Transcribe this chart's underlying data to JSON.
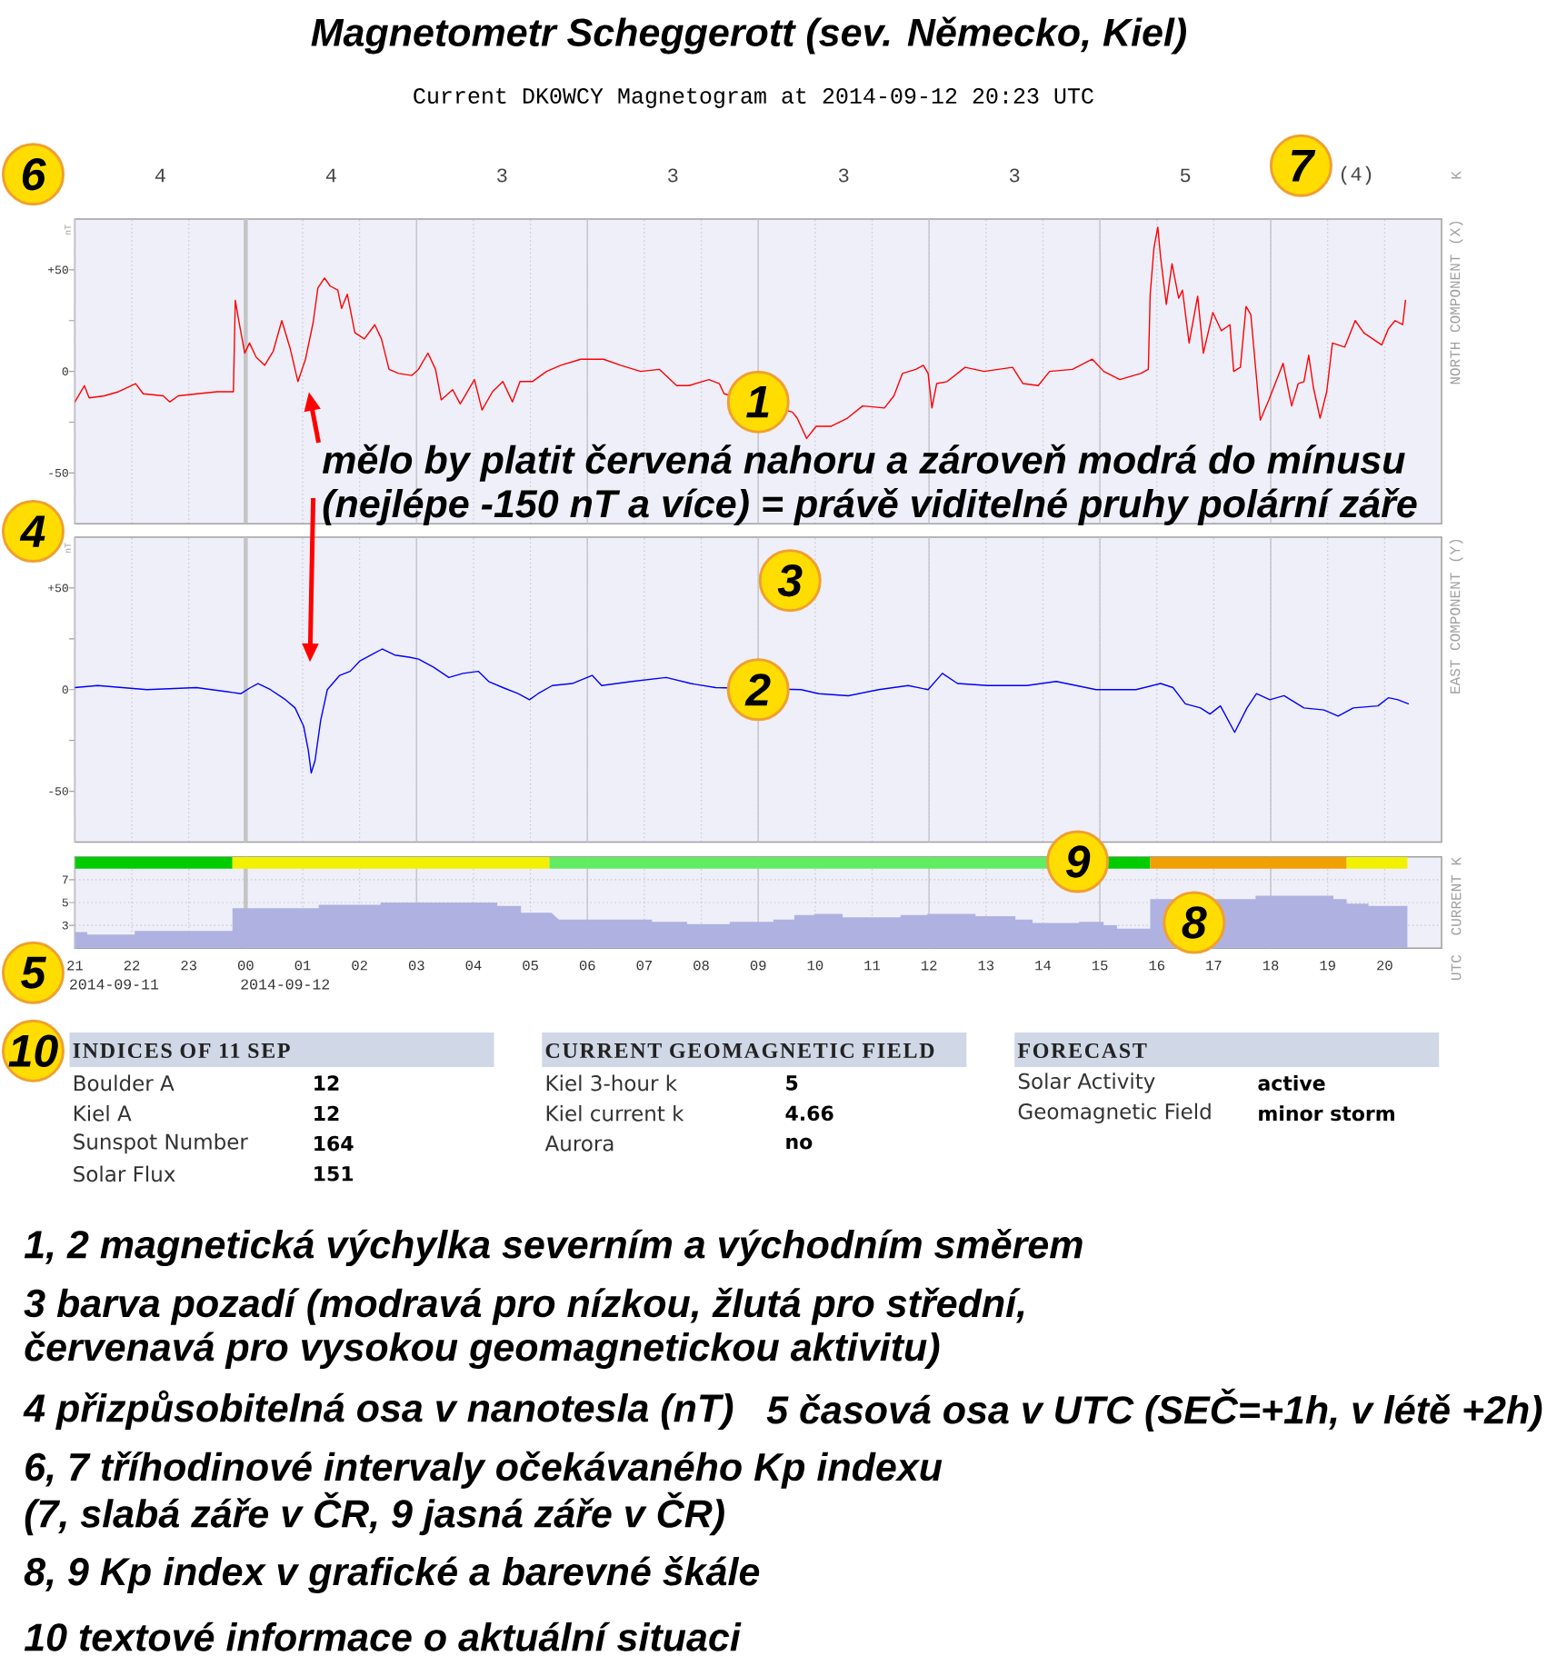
{
  "chart_data": [
    {
      "type": "line",
      "title": "Magnetometr Scheggerott (sev. Německo, Kiel)",
      "subtitle": "Current DK0WCY Magnetogram at 2014-09-12 20:23 UTC",
      "ylabel": "nT",
      "y2label": "NORTH COMPONENT (X)",
      "color": "#ff0000",
      "x": [
        "2014-09-11T21:00",
        "2014-09-11T21:10",
        "2014-09-11T21:15",
        "2014-09-11T21:31",
        "2014-09-11T21:46",
        "2014-09-11T22:04",
        "2014-09-11T22:12",
        "2014-09-11T22:33",
        "2014-09-11T22:40",
        "2014-09-11T22:49",
        "2014-09-11T23:09",
        "2014-09-11T23:30",
        "2014-09-11T23:47",
        "2014-09-11T23:49",
        "2014-09-11T23:53",
        "2014-09-11T23:59",
        "2014-09-12T00:04",
        "2014-09-12T00:11",
        "2014-09-12T00:20",
        "2014-09-12T00:29",
        "2014-09-12T00:38",
        "2014-09-12T00:47",
        "2014-09-12T00:55",
        "2014-09-12T01:03",
        "2014-09-12T01:11",
        "2014-09-12T01:16",
        "2014-09-12T01:23",
        "2014-09-12T01:29",
        "2014-09-12T01:37",
        "2014-09-12T01:41",
        "2014-09-12T01:47",
        "2014-09-12T01:55",
        "2014-09-12T02:05",
        "2014-09-12T02:16",
        "2014-09-12T02:23",
        "2014-09-12T02:31",
        "2014-09-12T02:41",
        "2014-09-12T02:55",
        "2014-09-12T03:02",
        "2014-09-12T03:12",
        "2014-09-12T03:20",
        "2014-09-12T03:26",
        "2014-09-12T03:38",
        "2014-09-12T03:46",
        "2014-09-12T04:01",
        "2014-09-12T04:09",
        "2014-09-12T04:20",
        "2014-09-12T04:31",
        "2014-09-12T04:41",
        "2014-09-12T04:49",
        "2014-09-12T05:02",
        "2014-09-12T05:17",
        "2014-09-12T05:32",
        "2014-09-12T05:53",
        "2014-09-12T06:17",
        "2014-09-12T06:35",
        "2014-09-12T06:56",
        "2014-09-12T07:16",
        "2014-09-12T07:34",
        "2014-09-12T07:47",
        "2014-09-12T08:08",
        "2014-09-12T08:19",
        "2014-09-12T08:24",
        "2014-09-12T09:36",
        "2014-09-12T09:41",
        "2014-09-12T09:51",
        "2014-09-12T10:01",
        "2014-09-12T10:17",
        "2014-09-12T10:34",
        "2014-09-12T10:50",
        "2014-09-12T11:13",
        "2014-09-12T11:23",
        "2014-09-12T11:32",
        "2014-09-12T11:46",
        "2014-09-12T11:54",
        "2014-09-12T11:59",
        "2014-09-12T12:03",
        "2014-09-12T12:08",
        "2014-09-12T12:19",
        "2014-09-12T12:38",
        "2014-09-12T12:58",
        "2014-09-12T13:28",
        "2014-09-12T13:39",
        "2014-09-12T13:55",
        "2014-09-12T14:07",
        "2014-09-12T14:31",
        "2014-09-12T14:52",
        "2014-09-12T15:04",
        "2014-09-12T15:21",
        "2014-09-12T15:43",
        "2014-09-12T15:51",
        "2014-09-12T15:53",
        "2014-09-12T15:57",
        "2014-09-12T16:01",
        "2014-09-12T16:04",
        "2014-09-12T16:10",
        "2014-09-12T16:16",
        "2014-09-12T16:23",
        "2014-09-12T16:27",
        "2014-09-12T16:34",
        "2014-09-12T16:43",
        "2014-09-12T16:49",
        "2014-09-12T16:59",
        "2014-09-12T17:08",
        "2014-09-12T17:17",
        "2014-09-12T17:21",
        "2014-09-12T17:28",
        "2014-09-12T17:34",
        "2014-09-12T17:39",
        "2014-09-12T17:49",
        "2014-09-12T17:58",
        "2014-09-12T18:13",
        "2014-09-12T18:22",
        "2014-09-12T18:29",
        "2014-09-12T18:35",
        "2014-09-12T18:40",
        "2014-09-12T18:45",
        "2014-09-12T18:52",
        "2014-09-12T18:59",
        "2014-09-12T19:05",
        "2014-09-12T19:18",
        "2014-09-12T19:29",
        "2014-09-12T19:38",
        "2014-09-12T19:57",
        "2014-09-12T20:04",
        "2014-09-12T20:11",
        "2014-09-12T20:19",
        "2014-09-12T20:22"
      ],
      "values": [
        -15,
        -7,
        -13,
        -12,
        -10,
        -6,
        -11,
        -12,
        -15,
        -12,
        -11,
        -10,
        -10,
        35,
        24,
        9,
        14,
        7,
        3,
        10,
        25,
        11,
        -5,
        6,
        24,
        41,
        46,
        42,
        40,
        31,
        38,
        19,
        16,
        23,
        16,
        1,
        -1,
        -2,
        1,
        9,
        1,
        -14,
        -9,
        -16,
        -4,
        -19,
        -10,
        -5,
        -15,
        -5,
        -5,
        0,
        3,
        6,
        6,
        3,
        0,
        1,
        -7,
        -7,
        -4,
        -6,
        -11,
        -20,
        -23,
        -33,
        -27,
        -27,
        -23,
        -17,
        -18,
        -12,
        -1,
        1,
        3,
        -1,
        -18,
        -6,
        -5,
        2,
        0,
        2,
        -6,
        -7,
        0,
        1,
        6,
        0,
        -4,
        -1,
        1,
        38,
        61,
        71,
        56,
        33,
        53,
        36,
        40,
        14,
        37,
        9,
        29,
        20,
        23,
        0,
        2,
        32,
        28,
        -24,
        -14,
        4,
        -17,
        -6,
        -5,
        8,
        -8,
        -23,
        -10,
        14,
        12,
        25,
        19,
        13,
        21,
        25,
        23,
        35
      ],
      "xlim": [
        "2014-09-11T21:00",
        "2014-09-12T21:00"
      ],
      "xticks": [
        {
          "value": "2014-09-11T21:00",
          "label": null
        },
        {
          "value": "2014-09-11T22:00",
          "label": null
        },
        {
          "value": "2014-09-11T23:00",
          "label": null
        },
        {
          "value": "2014-09-12T00:00",
          "label": null
        },
        {
          "value": "2014-09-12T01:00",
          "label": null
        },
        {
          "value": "2014-09-12T02:00",
          "label": null
        },
        {
          "value": "2014-09-12T03:00",
          "label": null
        },
        {
          "value": "2014-09-12T04:00",
          "label": null
        },
        {
          "value": "2014-09-12T05:00",
          "label": null
        },
        {
          "value": "2014-09-12T06:00",
          "label": null
        },
        {
          "value": "2014-09-12T07:00",
          "label": null
        },
        {
          "value": "2014-09-12T08:00",
          "label": null
        },
        {
          "value": "2014-09-12T09:00",
          "label": null
        },
        {
          "value": "2014-09-12T10:00",
          "label": null
        },
        {
          "value": "2014-09-12T11:00",
          "label": null
        },
        {
          "value": "2014-09-12T12:00",
          "label": null
        },
        {
          "value": "2014-09-12T13:00",
          "label": null
        },
        {
          "value": "2014-09-12T14:00",
          "label": null
        },
        {
          "value": "2014-09-12T15:00",
          "label": null
        },
        {
          "value": "2014-09-12T16:00",
          "label": null
        },
        {
          "value": "2014-09-12T17:00",
          "label": null
        },
        {
          "value": "2014-09-12T18:00",
          "label": null
        },
        {
          "value": "2014-09-12T19:00",
          "label": null
        },
        {
          "value": "2014-09-12T20:00",
          "label": null
        }
      ],
      "tick_labels": "y",
      "ylim": [
        -75,
        75
      ],
      "yticks": [
        -50,
        {
          "value": -25,
          "label": null
        },
        0,
        {
          "value": 25,
          "label": null
        },
        {
          "value": 50,
          "label": "+50"
        }
      ],
      "grid": "x",
      "ref_lines": [
        {
          "axis": "x",
          "value": "2014-09-12T00:00",
          "color": "#c4c4c4"
        }
      ],
      "annotations": [
        {
          "text": "1",
          "x": "2014-09-12T09:00",
          "y": -15
        },
        "6",
        "7",
        {
          "text": "mělo by platit červená nahoru a zároveň modrá do mínusu",
          "x": "2014-09-12T00:55",
          "y": -5
        },
        "(nejlépe -150 nT a více) = právě viditelné pruhy polární záře",
        "1, 2 magnetická výchylka severním a východním směrem",
        "3 barva pozadí (modravá pro nízkou, žlutá pro střední,",
        "červenavá pro vysokou geomagnetickou aktivitu)",
        "4 přizpůsobitelná osa v nanotesla (nT)",
        "5 časová osa v UTC (SEČ=+1h, v létě +2h)",
        "6, 7 tříhodinové intervaly očekávaného Kp indexu",
        "(7, slabá záře v ČR, 9 jasná záře v ČR)",
        "8, 9 Kp index v grafické a barevné škále",
        "10 textové informace o aktuální situaci"
      ]
    },
    {
      "type": "other",
      "annotations": [
        "4",
        "4",
        "3",
        "3",
        "3",
        "3",
        "5",
        "(4)",
        "K"
      ]
    },
    {
      "type": "line",
      "ylabel": "nT",
      "y2label": "EAST COMPONENT (Y)",
      "color": "#0000ff",
      "x": [
        "2014-09-11T21:00",
        "2014-09-11T21:24",
        "2014-09-11T22:16",
        "2014-09-11T23:08",
        "2014-09-11T23:40",
        "2014-09-11T23:55",
        "2014-09-12T00:05",
        "2014-09-12T00:13",
        "2014-09-12T00:26",
        "2014-09-12T00:42",
        "2014-09-12T00:52",
        "2014-09-12T01:01",
        "2014-09-12T01:06",
        "2014-09-12T01:09",
        "2014-09-12T01:13",
        "2014-09-12T01:19",
        "2014-09-12T01:26",
        "2014-09-12T01:39",
        "2014-09-12T01:50",
        "2014-09-12T02:00",
        "2014-09-12T02:16",
        "2014-09-12T02:24",
        "2014-09-12T02:37",
        "2014-09-12T02:52",
        "2014-09-12T03:02",
        "2014-09-12T03:18",
        "2014-09-12T03:34",
        "2014-09-12T03:49",
        "2014-09-12T04:05",
        "2014-09-12T04:16",
        "2014-09-12T04:31",
        "2014-09-12T04:47",
        "2014-09-12T04:59",
        "2014-09-12T05:08",
        "2014-09-12T05:23",
        "2014-09-12T05:44",
        "2014-09-12T06:05",
        "2014-09-12T06:15",
        "2014-09-12T06:47",
        "2014-09-12T07:23",
        "2014-09-12T07:49",
        "2014-09-12T08:15",
        "2014-09-12T09:45",
        "2014-09-12T10:04",
        "2014-09-12T10:35",
        "2014-09-12T11:07",
        "2014-09-12T11:38",
        "2014-09-12T11:59",
        "2014-09-12T12:14",
        "2014-09-12T12:30",
        "2014-09-12T13:02",
        "2014-09-12T13:43",
        "2014-09-12T14:14",
        "2014-09-12T14:56",
        "2014-09-12T15:38",
        "2014-09-12T16:04",
        "2014-09-12T16:17",
        "2014-09-12T16:30",
        "2014-09-12T16:46",
        "2014-09-12T16:56",
        "2014-09-12T17:07",
        "2014-09-12T17:22",
        "2014-09-12T17:35",
        "2014-09-12T17:45",
        "2014-09-12T17:59",
        "2014-09-12T18:14",
        "2014-09-12T18:35",
        "2014-09-12T18:56",
        "2014-09-12T19:11",
        "2014-09-12T19:27",
        "2014-09-12T19:53",
        "2014-09-12T20:04",
        "2014-09-12T20:14",
        "2014-09-12T20:25"
      ],
      "values": [
        1,
        2,
        0,
        1,
        -1,
        -2,
        1,
        3,
        0,
        -5,
        -9,
        -18,
        -30,
        -41,
        -35,
        -15,
        0,
        7,
        9,
        14,
        18,
        20,
        17,
        16,
        15,
        11,
        6,
        8,
        9,
        4,
        1,
        -2,
        -5,
        -2,
        2,
        3,
        7,
        2,
        4,
        6,
        3,
        1,
        0,
        -2,
        -3,
        0,
        2,
        0,
        8,
        3,
        2,
        2,
        4,
        0,
        0,
        3,
        1,
        -7,
        -9,
        -12,
        -8,
        -21,
        -9,
        -2,
        -5,
        -3,
        -9,
        -10,
        -13,
        -9,
        -8,
        -4,
        -5,
        -7
      ],
      "xlim": [
        "2014-09-11T21:00",
        "2014-09-12T21:00"
      ],
      "xticks": [
        {
          "value": "2014-09-11T21:00",
          "label": null
        },
        {
          "value": "2014-09-11T22:00",
          "label": null
        },
        {
          "value": "2014-09-11T23:00",
          "label": null
        },
        {
          "value": "2014-09-12T00:00",
          "label": null
        },
        {
          "value": "2014-09-12T01:00",
          "label": null
        },
        {
          "value": "2014-09-12T02:00",
          "label": null
        },
        {
          "value": "2014-09-12T03:00",
          "label": null
        },
        {
          "value": "2014-09-12T04:00",
          "label": null
        },
        {
          "value": "2014-09-12T05:00",
          "label": null
        },
        {
          "value": "2014-09-12T06:00",
          "label": null
        },
        {
          "value": "2014-09-12T07:00",
          "label": null
        },
        {
          "value": "2014-09-12T08:00",
          "label": null
        },
        {
          "value": "2014-09-12T09:00",
          "label": null
        },
        {
          "value": "2014-09-12T10:00",
          "label": null
        },
        {
          "value": "2014-09-12T11:00",
          "label": null
        },
        {
          "value": "2014-09-12T12:00",
          "label": null
        },
        {
          "value": "2014-09-12T13:00",
          "label": null
        },
        {
          "value": "2014-09-12T14:00",
          "label": null
        },
        {
          "value": "2014-09-12T15:00",
          "label": null
        },
        {
          "value": "2014-09-12T16:00",
          "label": null
        },
        {
          "value": "2014-09-12T17:00",
          "label": null
        },
        {
          "value": "2014-09-12T18:00",
          "label": null
        },
        {
          "value": "2014-09-12T19:00",
          "label": null
        },
        {
          "value": "2014-09-12T20:00",
          "label": null
        }
      ],
      "tick_labels": "y",
      "ylim": [
        -75,
        75
      ],
      "yticks": [
        -50,
        {
          "value": -25,
          "label": null
        },
        0,
        {
          "value": 25,
          "label": null
        },
        {
          "value": 50,
          "label": "+50"
        }
      ],
      "grid": "x",
      "ref_lines": [
        {
          "axis": "x",
          "value": "2014-09-12T00:00",
          "color": "#c4c4c4"
        }
      ],
      "annotations": [
        {
          "text": "2",
          "x": "2014-09-12T09:00",
          "y": 0
        },
        "3",
        "4"
      ]
    },
    {
      "type": "area",
      "ylabel": "CURRENT K",
      "color": "#afb1e1",
      "x": [
        "2014-09-11T21:00",
        "2014-09-11T21:13",
        "2014-09-11T21:13",
        "2014-09-11T22:03",
        "2014-09-11T22:03",
        "2014-09-11T23:46",
        "2014-09-11T23:46",
        "2014-09-12T01:17",
        "2014-09-12T01:17",
        "2014-09-12T02:22",
        "2014-09-12T02:22",
        "2014-09-12T04:25",
        "2014-09-12T04:25",
        "2014-09-12T04:50",
        "2014-09-12T04:50",
        "2014-09-12T05:22",
        "2014-09-12T05:30",
        "2014-09-12T07:08",
        "2014-09-12T07:08",
        "2014-09-12T07:45",
        "2014-09-12T07:45",
        "2014-09-12T08:30",
        "2014-09-12T08:30",
        "2014-09-12T09:16",
        "2014-09-12T09:16",
        "2014-09-12T09:38",
        "2014-09-12T09:38",
        "2014-09-12T09:59",
        "2014-09-12T09:59",
        "2014-09-12T10:29",
        "2014-09-12T10:29",
        "2014-09-12T11:30",
        "2014-09-12T11:30",
        "2014-09-12T11:58",
        "2014-09-12T11:58",
        "2014-09-12T12:49",
        "2014-09-12T12:49",
        "2014-09-12T13:31",
        "2014-09-12T13:31",
        "2014-09-12T13:49",
        "2014-09-12T13:49",
        "2014-09-12T14:38",
        "2014-09-12T14:38",
        "2014-09-12T15:04",
        "2014-09-12T15:04",
        "2014-09-12T15:18",
        "2014-09-12T15:18",
        "2014-09-12T15:53",
        "2014-09-12T15:53",
        "2014-09-12T17:44",
        "2014-09-12T17:44",
        "2014-09-12T19:06",
        "2014-09-12T19:06",
        "2014-09-12T19:20",
        "2014-09-12T19:20",
        "2014-09-12T19:43",
        "2014-09-12T19:43",
        "2014-09-12T20:24"
      ],
      "values": [
        2.4,
        2.4,
        2.2,
        2.2,
        2.5,
        2.5,
        4.5,
        4.5,
        4.8,
        4.8,
        5,
        5,
        4.7,
        4.7,
        4.1,
        4.1,
        3.5,
        3.5,
        3.3,
        3.3,
        3.1,
        3.1,
        3.3,
        3.3,
        3.5,
        3.5,
        3.9,
        3.9,
        4,
        4,
        3.7,
        3.7,
        3.9,
        3.9,
        4,
        4,
        3.8,
        3.8,
        3.5,
        3.5,
        3.2,
        3.2,
        3.3,
        3.3,
        3,
        3,
        2.7,
        2.7,
        5.3,
        5.3,
        5.6,
        5.6,
        5.3,
        5.3,
        4.9,
        4.9,
        4.7,
        4.7
      ],
      "xlim": [
        "2014-09-11T21:00",
        "2014-09-12T21:00"
      ],
      "xticks": [
        {
          "value": "2014-09-11T21:00",
          "label": "21"
        },
        {
          "value": "2014-09-11T22:00",
          "label": "22"
        },
        {
          "value": "2014-09-11T23:00",
          "label": "23"
        },
        {
          "value": "2014-09-12T00:00",
          "label": "00"
        },
        {
          "value": "2014-09-12T01:00",
          "label": "01"
        },
        {
          "value": "2014-09-12T02:00",
          "label": "02"
        },
        {
          "value": "2014-09-12T03:00",
          "label": "03"
        },
        {
          "value": "2014-09-12T04:00",
          "label": "04"
        },
        {
          "value": "2014-09-12T05:00",
          "label": "05"
        },
        {
          "value": "2014-09-12T06:00",
          "label": "06"
        },
        {
          "value": "2014-09-12T07:00",
          "label": "07"
        },
        {
          "value": "2014-09-12T08:00",
          "label": "08"
        },
        {
          "value": "2014-09-12T09:00",
          "label": "09"
        },
        {
          "value": "2014-09-12T10:00",
          "label": "10"
        },
        {
          "value": "2014-09-12T11:00",
          "label": "11"
        },
        {
          "value": "2014-09-12T12:00",
          "label": "12"
        },
        {
          "value": "2014-09-12T13:00",
          "label": "13"
        },
        {
          "value": "2014-09-12T14:00",
          "label": "14"
        },
        {
          "value": "2014-09-12T15:00",
          "label": "15"
        },
        {
          "value": "2014-09-12T16:00",
          "label": "16"
        },
        {
          "value": "2014-09-12T17:00",
          "label": "17"
        },
        {
          "value": "2014-09-12T18:00",
          "label": "18"
        },
        {
          "value": "2014-09-12T19:00",
          "label": "19"
        },
        {
          "value": "2014-09-12T20:00",
          "label": "20"
        }
      ],
      "ylim": [
        1,
        9
      ],
      "yticks": [
        3,
        5,
        7
      ],
      "grid": true,
      "ref_lines": [
        {
          "axis": "x",
          "value": "2014-09-12T00:00",
          "color": "#c4c4c4"
        }
      ],
      "bands": [
        {
          "axis": "x",
          "from": "2014-09-11T21:00",
          "to": "2014-09-11T23:46",
          "color": "#00cc00"
        },
        {
          "axis": "x",
          "from": "2014-09-11T23:46",
          "to": "2014-09-12T05:20",
          "color": "#f2f200"
        },
        {
          "axis": "x",
          "from": "2014-09-12T05:20",
          "to": "2014-09-12T15:08",
          "color": "#62ec62"
        },
        {
          "axis": "x",
          "from": "2014-09-12T15:08",
          "to": "2014-09-12T15:53",
          "color": "#00cc00"
        },
        {
          "axis": "x",
          "from": "2014-09-12T15:53",
          "to": "2014-09-12T19:20",
          "color": "#f0a000"
        },
        {
          "axis": "x",
          "from": "2014-09-12T19:20",
          "to": "2014-09-12T20:24",
          "color": "#f2f200"
        }
      ],
      "annotations": [
        "8",
        "9",
        "5",
        "2014-09-11",
        "2014-09-12",
        "UTC"
      ]
    },
    {
      "type": "other",
      "title": "INDICES OF 11 SEP",
      "annotations": [
        "Boulder A",
        "12",
        "Kiel A",
        "12",
        "Sunspot Number",
        "164",
        "Solar Flux",
        "151",
        "10"
      ]
    },
    {
      "type": "other",
      "title": "CURRENT GEOMAGNETIC FIELD",
      "annotations": [
        "Kiel 3-hour k",
        "5",
        "Kiel current k",
        "4.66",
        "Aurora",
        "no"
      ]
    },
    {
      "type": "other",
      "title": "FORECAST",
      "annotations": [
        "Solar Activity",
        "active",
        "Geomagnetic Field",
        "minor storm"
      ]
    }
  ]
}
